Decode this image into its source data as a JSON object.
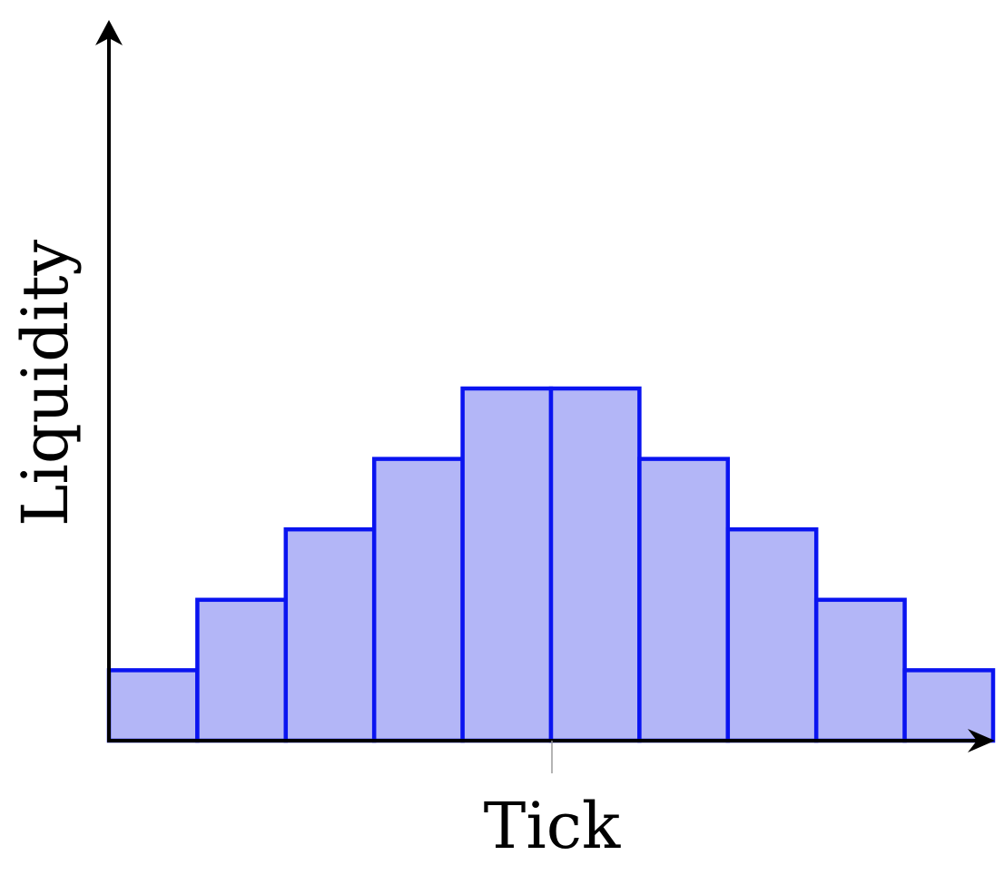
{
  "chart_data": {
    "type": "bar",
    "xlabel": "Tick",
    "ylabel": "Liquidity",
    "values": [
      1,
      2,
      3,
      4,
      5,
      5,
      4,
      3,
      2,
      1
    ],
    "ylim": [
      0,
      10
    ],
    "grid": false,
    "legend": "none",
    "axis_arrows": true,
    "center_tick": true,
    "colors": {
      "bar_fill": "#b3b6f7",
      "bar_stroke": "#0a14f0",
      "axis": "#000000",
      "tick": "#9a9a9a"
    }
  }
}
